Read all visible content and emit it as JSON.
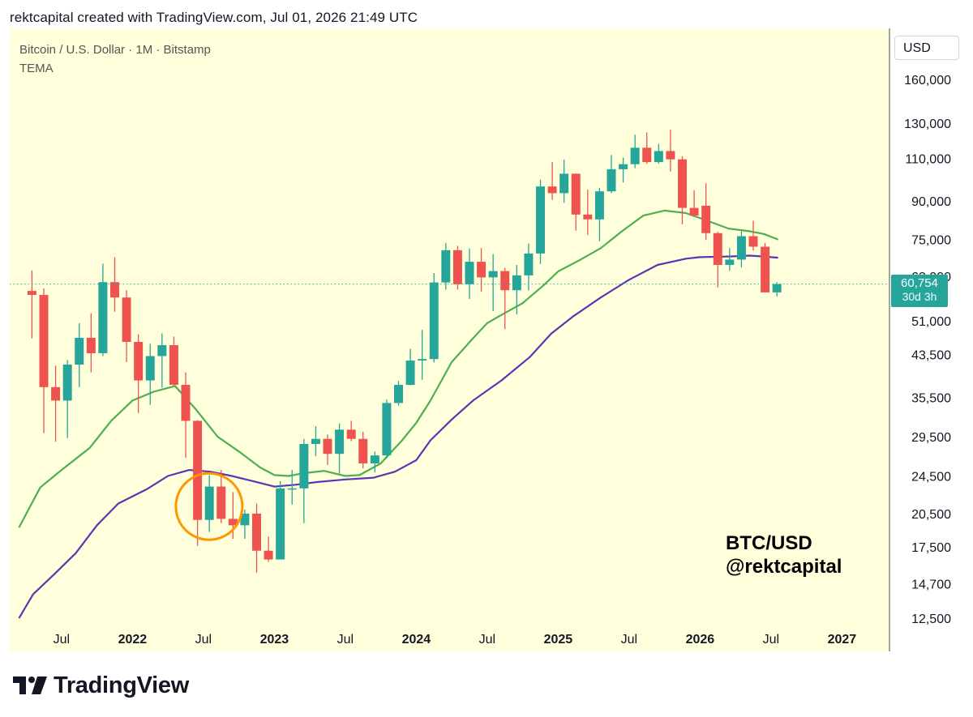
{
  "header": {
    "text": "rektcapital created with TradingView.com, Jul 01, 2026 21:49 UTC"
  },
  "legend": {
    "symbol_line": "Bitcoin / U.S. Dollar · 1M · Bitstamp",
    "indicator": "TEMA"
  },
  "currency": "USD",
  "price_tag": {
    "value": "60,754",
    "countdown": "30d 3h"
  },
  "watermark": {
    "line1": "BTC/USD",
    "line2": "@rektcapital"
  },
  "footer": {
    "brand": "TradingView",
    "logo_icon": "tradingview-logo-icon"
  },
  "colors": {
    "background": "#ffffdc",
    "up": "#26a69a",
    "down": "#ef5350",
    "tema_fast": "#4caf50",
    "tema_slow": "#5e35b1",
    "highlight": "#ff9800"
  },
  "chart_data": {
    "type": "candlestick",
    "scale": "log",
    "x_tick_labels": [
      {
        "t": 2021.5,
        "label": "Jul",
        "bold": false
      },
      {
        "t": 2022.0,
        "label": "2022",
        "bold": true
      },
      {
        "t": 2022.5,
        "label": "Jul",
        "bold": false
      },
      {
        "t": 2023.0,
        "label": "2023",
        "bold": true
      },
      {
        "t": 2023.5,
        "label": "Jul",
        "bold": false
      },
      {
        "t": 2024.0,
        "label": "2024",
        "bold": true
      },
      {
        "t": 2024.5,
        "label": "Jul",
        "bold": false
      },
      {
        "t": 2025.0,
        "label": "2025",
        "bold": true
      },
      {
        "t": 2025.5,
        "label": "Jul",
        "bold": false
      },
      {
        "t": 2026.0,
        "label": "2026",
        "bold": true
      },
      {
        "t": 2026.5,
        "label": "Jul",
        "bold": false
      },
      {
        "t": 2027.0,
        "label": "2027",
        "bold": true
      }
    ],
    "y_tick_labels": [
      {
        "v": 160000,
        "label": "160,000"
      },
      {
        "v": 130000,
        "label": "130,000"
      },
      {
        "v": 110000,
        "label": "110,000"
      },
      {
        "v": 90000,
        "label": "90,000"
      },
      {
        "v": 75000,
        "label": "75,000"
      },
      {
        "v": 63000,
        "label": "63,000"
      },
      {
        "v": 51000,
        "label": "51,000"
      },
      {
        "v": 43500,
        "label": "43,500"
      },
      {
        "v": 35500,
        "label": "35,500"
      },
      {
        "v": 29500,
        "label": "29,500"
      },
      {
        "v": 24500,
        "label": "24,500"
      },
      {
        "v": 20500,
        "label": "20,500"
      },
      {
        "v": 17500,
        "label": "17,500"
      },
      {
        "v": 14700,
        "label": "14,700"
      },
      {
        "v": 12500,
        "label": "12,500"
      }
    ],
    "last_price": 60754,
    "candles": [
      {
        "t": "2021-04",
        "o": 58800,
        "h": 64800,
        "l": 47000,
        "c": 57700
      },
      {
        "t": "2021-05",
        "o": 57700,
        "h": 59500,
        "l": 30000,
        "c": 37300
      },
      {
        "t": "2021-06",
        "o": 37300,
        "h": 41300,
        "l": 28800,
        "c": 35000
      },
      {
        "t": "2021-07",
        "o": 35000,
        "h": 42400,
        "l": 29300,
        "c": 41500
      },
      {
        "t": "2021-08",
        "o": 41500,
        "h": 50500,
        "l": 37300,
        "c": 47100
      },
      {
        "t": "2021-09",
        "o": 47100,
        "h": 52900,
        "l": 40000,
        "c": 43800
      },
      {
        "t": "2021-10",
        "o": 43800,
        "h": 66900,
        "l": 43200,
        "c": 61300
      },
      {
        "t": "2021-11",
        "o": 61300,
        "h": 69000,
        "l": 53300,
        "c": 57000
      },
      {
        "t": "2021-12",
        "o": 57000,
        "h": 59000,
        "l": 42000,
        "c": 46200
      },
      {
        "t": "2022-01",
        "o": 46200,
        "h": 47900,
        "l": 33000,
        "c": 38500
      },
      {
        "t": "2022-02",
        "o": 38500,
        "h": 45800,
        "l": 34300,
        "c": 43200
      },
      {
        "t": "2022-03",
        "o": 43200,
        "h": 48100,
        "l": 37200,
        "c": 45500
      },
      {
        "t": "2022-04",
        "o": 45500,
        "h": 47400,
        "l": 37600,
        "c": 37700
      },
      {
        "t": "2022-05",
        "o": 37700,
        "h": 40000,
        "l": 26700,
        "c": 31800
      },
      {
        "t": "2022-06",
        "o": 31800,
        "h": 31900,
        "l": 17600,
        "c": 19900
      },
      {
        "t": "2022-07",
        "o": 19900,
        "h": 24600,
        "l": 18800,
        "c": 23300
      },
      {
        "t": "2022-08",
        "o": 23300,
        "h": 25200,
        "l": 19600,
        "c": 20000
      },
      {
        "t": "2022-09",
        "o": 20000,
        "h": 22700,
        "l": 18200,
        "c": 19400
      },
      {
        "t": "2022-10",
        "o": 19400,
        "h": 20900,
        "l": 18200,
        "c": 20500
      },
      {
        "t": "2022-11",
        "o": 20500,
        "h": 21500,
        "l": 15500,
        "c": 17200
      },
      {
        "t": "2022-12",
        "o": 17200,
        "h": 18400,
        "l": 16300,
        "c": 16500
      },
      {
        "t": "2023-01",
        "o": 16500,
        "h": 23900,
        "l": 16500,
        "c": 23100
      },
      {
        "t": "2023-02",
        "o": 23100,
        "h": 25200,
        "l": 21400,
        "c": 23100
      },
      {
        "t": "2023-03",
        "o": 23100,
        "h": 29200,
        "l": 19600,
        "c": 28500
      },
      {
        "t": "2023-04",
        "o": 28500,
        "h": 31000,
        "l": 26900,
        "c": 29200
      },
      {
        "t": "2023-05",
        "o": 29200,
        "h": 29800,
        "l": 25800,
        "c": 27200
      },
      {
        "t": "2023-06",
        "o": 27200,
        "h": 31400,
        "l": 24800,
        "c": 30500
      },
      {
        "t": "2023-07",
        "o": 30500,
        "h": 31800,
        "l": 28900,
        "c": 29200
      },
      {
        "t": "2023-08",
        "o": 29200,
        "h": 30200,
        "l": 25400,
        "c": 26000
      },
      {
        "t": "2023-09",
        "o": 26000,
        "h": 27500,
        "l": 24900,
        "c": 27000
      },
      {
        "t": "2023-10",
        "o": 27000,
        "h": 35200,
        "l": 26600,
        "c": 34600
      },
      {
        "t": "2023-11",
        "o": 34600,
        "h": 38400,
        "l": 34200,
        "c": 37700
      },
      {
        "t": "2023-12",
        "o": 37700,
        "h": 44700,
        "l": 37600,
        "c": 42300
      },
      {
        "t": "2024-01",
        "o": 42300,
        "h": 48900,
        "l": 38600,
        "c": 42600
      },
      {
        "t": "2024-02",
        "o": 42600,
        "h": 64000,
        "l": 41900,
        "c": 61200
      },
      {
        "t": "2024-03",
        "o": 61200,
        "h": 73800,
        "l": 59200,
        "c": 71300
      },
      {
        "t": "2024-04",
        "o": 71300,
        "h": 72800,
        "l": 59200,
        "c": 60700
      },
      {
        "t": "2024-05",
        "o": 60700,
        "h": 71900,
        "l": 56600,
        "c": 67500
      },
      {
        "t": "2024-06",
        "o": 67500,
        "h": 72000,
        "l": 58600,
        "c": 62700
      },
      {
        "t": "2024-07",
        "o": 62700,
        "h": 70000,
        "l": 53500,
        "c": 64600
      },
      {
        "t": "2024-08",
        "o": 64600,
        "h": 65600,
        "l": 49100,
        "c": 59000
      },
      {
        "t": "2024-09",
        "o": 59000,
        "h": 66500,
        "l": 52600,
        "c": 63300
      },
      {
        "t": "2024-10",
        "o": 63300,
        "h": 73600,
        "l": 58900,
        "c": 70200
      },
      {
        "t": "2024-11",
        "o": 70200,
        "h": 99600,
        "l": 66800,
        "c": 96400
      },
      {
        "t": "2024-12",
        "o": 96400,
        "h": 108300,
        "l": 90500,
        "c": 93400
      },
      {
        "t": "2025-01",
        "o": 93400,
        "h": 109400,
        "l": 89200,
        "c": 102400
      },
      {
        "t": "2025-02",
        "o": 102400,
        "h": 102500,
        "l": 78200,
        "c": 84400
      },
      {
        "t": "2025-03",
        "o": 84400,
        "h": 95000,
        "l": 76600,
        "c": 82500
      },
      {
        "t": "2025-04",
        "o": 82500,
        "h": 95700,
        "l": 74400,
        "c": 94200
      },
      {
        "t": "2025-05",
        "o": 94200,
        "h": 111900,
        "l": 93400,
        "c": 104600
      },
      {
        "t": "2025-06",
        "o": 104600,
        "h": 110500,
        "l": 98200,
        "c": 107100
      },
      {
        "t": "2025-07",
        "o": 107100,
        "h": 123200,
        "l": 105100,
        "c": 115800
      },
      {
        "t": "2025-08",
        "o": 115800,
        "h": 124500,
        "l": 107300,
        "c": 108200
      },
      {
        "t": "2025-09",
        "o": 108200,
        "h": 117900,
        "l": 107300,
        "c": 114000
      },
      {
        "t": "2025-10",
        "o": 114000,
        "h": 126200,
        "l": 103500,
        "c": 109600
      },
      {
        "t": "2025-11",
        "o": 109600,
        "h": 111200,
        "l": 80600,
        "c": 87100
      },
      {
        "t": "2025-12",
        "o": 87100,
        "h": 94600,
        "l": 84400,
        "c": 84000
      },
      {
        "t": "2026-01",
        "o": 88000,
        "h": 97900,
        "l": 74900,
        "c": 77300
      },
      {
        "t": "2026-02",
        "o": 77300,
        "h": 77800,
        "l": 59800,
        "c": 66500
      },
      {
        "t": "2026-03",
        "o": 66500,
        "h": 72000,
        "l": 64700,
        "c": 68200
      },
      {
        "t": "2026-04",
        "o": 68200,
        "h": 78000,
        "l": 65700,
        "c": 76200
      },
      {
        "t": "2026-05",
        "o": 76200,
        "h": 82000,
        "l": 71200,
        "c": 72500
      },
      {
        "t": "2026-06",
        "o": 72500,
        "h": 73800,
        "l": 58400,
        "c": 58400
      },
      {
        "t": "2026-07",
        "o": 58400,
        "h": 61300,
        "l": 57300,
        "c": 60754
      }
    ],
    "series": [
      {
        "color": "#4caf50",
        "points": [
          [
            2021.2,
            19200
          ],
          [
            2021.35,
            23200
          ],
          [
            2021.5,
            25200
          ],
          [
            2021.7,
            28000
          ],
          [
            2021.85,
            31800
          ],
          [
            2022.0,
            35000
          ],
          [
            2022.15,
            36500
          ],
          [
            2022.3,
            37500
          ],
          [
            2022.45,
            33500
          ],
          [
            2022.6,
            29500
          ],
          [
            2022.75,
            27500
          ],
          [
            2022.9,
            25500
          ],
          [
            2023.0,
            24600
          ],
          [
            2023.1,
            24500
          ],
          [
            2023.2,
            24800
          ],
          [
            2023.35,
            25100
          ],
          [
            2023.5,
            24500
          ],
          [
            2023.6,
            24600
          ],
          [
            2023.75,
            26000
          ],
          [
            2023.9,
            29000
          ],
          [
            2024.0,
            31500
          ],
          [
            2024.1,
            35000
          ],
          [
            2024.25,
            42000
          ],
          [
            2024.4,
            47000
          ],
          [
            2024.5,
            50500
          ],
          [
            2024.6,
            52500
          ],
          [
            2024.75,
            55500
          ],
          [
            2024.9,
            60500
          ],
          [
            2025.0,
            64500
          ],
          [
            2025.15,
            68000
          ],
          [
            2025.3,
            72000
          ],
          [
            2025.45,
            78000
          ],
          [
            2025.6,
            84000
          ],
          [
            2025.75,
            86000
          ],
          [
            2025.9,
            85000
          ],
          [
            2026.05,
            82000
          ],
          [
            2026.2,
            79000
          ],
          [
            2026.35,
            78000
          ],
          [
            2026.45,
            77000
          ],
          [
            2026.55,
            75000
          ]
        ]
      },
      {
        "color": "#5e35b1",
        "points": [
          [
            2021.2,
            12500
          ],
          [
            2021.3,
            14000
          ],
          [
            2021.45,
            15400
          ],
          [
            2021.6,
            17000
          ],
          [
            2021.75,
            19400
          ],
          [
            2021.9,
            21500
          ],
          [
            2022.1,
            23000
          ],
          [
            2022.25,
            24500
          ],
          [
            2022.4,
            25200
          ],
          [
            2022.55,
            25000
          ],
          [
            2022.7,
            24500
          ],
          [
            2022.85,
            23900
          ],
          [
            2023.0,
            23300
          ],
          [
            2023.15,
            23500
          ],
          [
            2023.3,
            23800
          ],
          [
            2023.5,
            24100
          ],
          [
            2023.7,
            24300
          ],
          [
            2023.85,
            25000
          ],
          [
            2024.0,
            26400
          ],
          [
            2024.1,
            29000
          ],
          [
            2024.25,
            32000
          ],
          [
            2024.4,
            35000
          ],
          [
            2024.6,
            38500
          ],
          [
            2024.8,
            43000
          ],
          [
            2024.95,
            48000
          ],
          [
            2025.1,
            52000
          ],
          [
            2025.3,
            57000
          ],
          [
            2025.5,
            62000
          ],
          [
            2025.7,
            66500
          ],
          [
            2025.9,
            68500
          ],
          [
            2026.0,
            69000
          ],
          [
            2026.2,
            69200
          ],
          [
            2026.35,
            69500
          ],
          [
            2026.45,
            69200
          ],
          [
            2026.55,
            68800
          ]
        ]
      }
    ],
    "annotations": [
      {
        "type": "circle",
        "t": 2022.54,
        "v": 21200,
        "color": "#ff9800"
      }
    ]
  }
}
